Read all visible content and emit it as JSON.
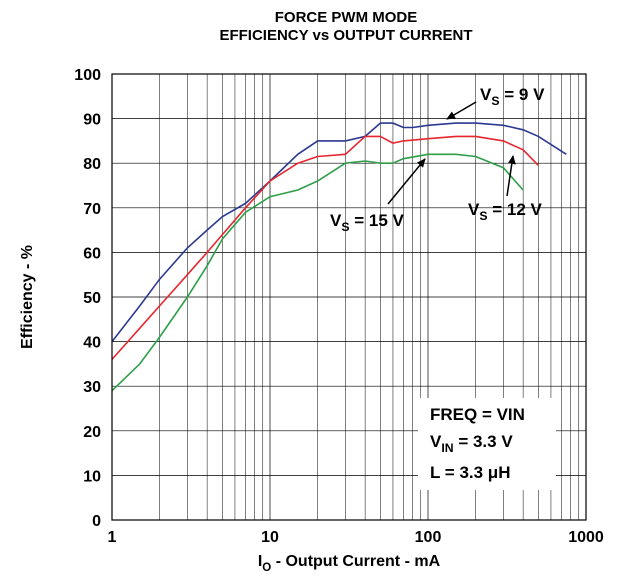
{
  "chart_data": {
    "type": "line",
    "title": [
      "FORCE PWM MODE",
      "EFFICIENCY vs OUTPUT CURRENT"
    ],
    "xlabel": {
      "main": "I",
      "sub": "O",
      "rest": " - Output Current - mA"
    },
    "ylabel": "Efficiency - %",
    "xscale": "log",
    "xlim": [
      1,
      1000
    ],
    "xticks": [
      1,
      10,
      100,
      1000
    ],
    "ylim": [
      0,
      100
    ],
    "yticks": [
      0,
      10,
      20,
      30,
      40,
      50,
      60,
      70,
      80,
      90,
      100
    ],
    "grid": true,
    "minor_grid": true,
    "series": [
      {
        "name": {
          "main": "V",
          "sub": "S",
          "rest": " = 9 V"
        },
        "color": "#2b3990",
        "x": [
          1,
          1.5,
          2,
          3,
          4,
          5,
          7,
          10,
          15,
          20,
          30,
          40,
          50,
          60,
          70,
          80,
          100,
          150,
          200,
          300,
          400,
          500,
          750
        ],
        "values": [
          40,
          48,
          54,
          61,
          65,
          68,
          71,
          76,
          82,
          85,
          85,
          86,
          89,
          89,
          88,
          88,
          88.5,
          89,
          89,
          88.5,
          87.5,
          86,
          82
        ]
      },
      {
        "name": {
          "main": "V",
          "sub": "S",
          "rest": " = 12 V"
        },
        "color": "#e8262e",
        "x": [
          1,
          1.5,
          2,
          3,
          4,
          5,
          7,
          10,
          15,
          20,
          30,
          40,
          50,
          60,
          70,
          100,
          150,
          200,
          300,
          400,
          500
        ],
        "values": [
          36,
          43,
          48,
          55,
          60,
          64,
          70,
          76,
          80,
          81.5,
          82,
          86,
          86,
          84.5,
          85,
          85.5,
          86,
          86,
          85,
          83,
          79.5
        ]
      },
      {
        "name": {
          "main": "V",
          "sub": "S",
          "rest": " = 15 V"
        },
        "color": "#2e9e48",
        "x": [
          1,
          1.5,
          2,
          3,
          4,
          5,
          7,
          10,
          15,
          20,
          30,
          40,
          50,
          60,
          70,
          100,
          150,
          200,
          300,
          400
        ],
        "values": [
          29,
          35,
          41,
          50,
          57,
          63,
          69,
          72.5,
          74,
          76,
          80,
          80.5,
          80,
          80,
          81,
          82,
          82,
          81.5,
          79,
          74
        ]
      }
    ],
    "conditions": [
      {
        "main": "FREQ = VIN"
      },
      {
        "main": "V",
        "sub": "IN",
        "rest": " = 3.3 V"
      },
      {
        "main": "L = 3.3 μH"
      }
    ]
  }
}
